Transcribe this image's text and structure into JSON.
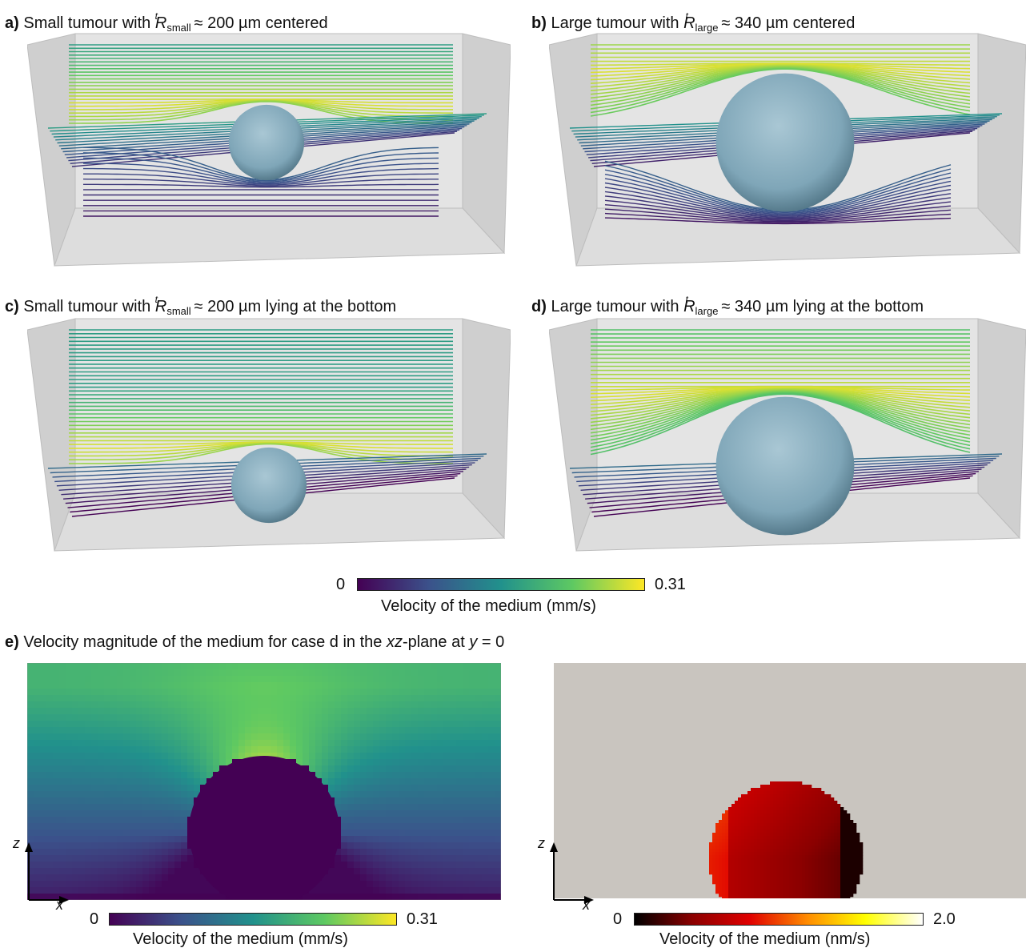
{
  "panels": {
    "a": {
      "letter": "a)",
      "prefix": "Small tumour with ",
      "sym": "R",
      "sup": "t",
      "sub": "small",
      "suffix": " ≈ 200 µm centered"
    },
    "b": {
      "letter": "b)",
      "prefix": "Large tumour with ",
      "sym": "R",
      "sup": "t",
      "sub": "large",
      "suffix": " ≈ 340 µm centered"
    },
    "c": {
      "letter": "c)",
      "prefix": "Small tumour with ",
      "sym": "R",
      "sup": "t",
      "sub": "small",
      "suffix": " ≈ 200 µm lying at the bottom"
    },
    "d": {
      "letter": "d)",
      "prefix": "Large tumour with ",
      "sym": "R",
      "sup": "t",
      "sub": "large",
      "suffix": " ≈ 340 µm lying at the bottom"
    },
    "e": {
      "letter": "e)",
      "text1": " Velocity magnitude of the medium for case d in the ",
      "ital1": "xz",
      "text2": "-plane at ",
      "ital2": "y",
      "text3": " = 0"
    }
  },
  "colorbars": {
    "main": {
      "min": "0",
      "max": "0.31",
      "label": "Velocity of the medium (mm/s)"
    },
    "left": {
      "min": "0",
      "max": "0.31",
      "label": "Velocity of the medium (mm/s)"
    },
    "right": {
      "min": "0",
      "max": "2.0",
      "label": "Velocity of the medium (nm/s)"
    }
  },
  "axes": {
    "z": "z",
    "x": "x"
  },
  "colors": {
    "viridis": [
      "#440154",
      "#3b528b",
      "#21918c",
      "#5ec962",
      "#fde725"
    ],
    "hot": [
      "#000000",
      "#8b0000",
      "#e00000",
      "#ff8c00",
      "#ffff00",
      "#ffffff"
    ],
    "box": "#c8c8c8",
    "sphere": "#7fa6b8",
    "background_e_right": "#c9c5bf"
  }
}
